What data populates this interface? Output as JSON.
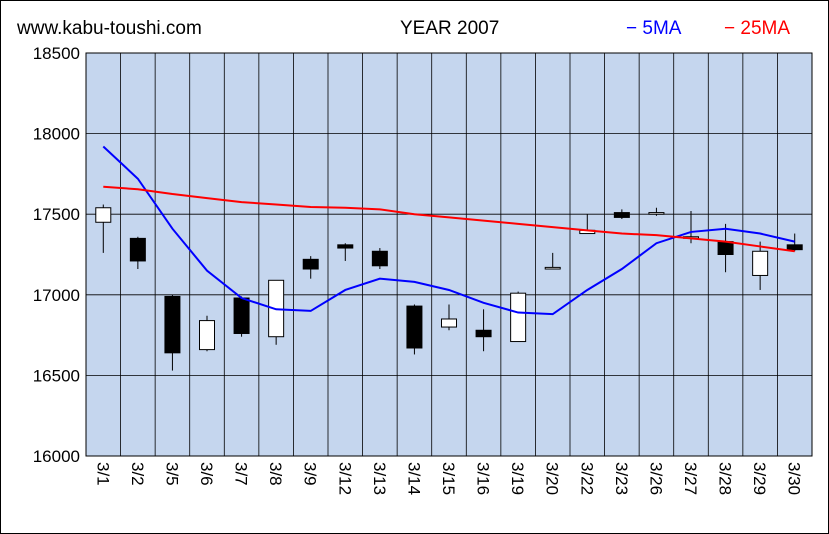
{
  "header": {
    "site": "www.kabu-toushi.com",
    "title": "YEAR 2007",
    "legend_ma5": "− 5MA",
    "legend_ma25": "− 25MA"
  },
  "colors": {
    "plot_background": "#c5d6ee",
    "grid": "#000000",
    "ma5": "#0000ff",
    "ma25": "#ff0000",
    "bull_body": "#ffffff",
    "bear_body": "#000000"
  },
  "chart_data": {
    "type": "candlestick",
    "title": "YEAR 2007",
    "xlabel": "",
    "ylabel": "",
    "ylim": [
      16000,
      18500
    ],
    "yticks": [
      16000,
      16500,
      17000,
      17500,
      18000,
      18500
    ],
    "grid": true,
    "legend_placement": "top-right",
    "categories": [
      "3/1",
      "3/2",
      "3/5",
      "3/6",
      "3/7",
      "3/8",
      "3/9",
      "3/12",
      "3/13",
      "3/14",
      "3/15",
      "3/16",
      "3/19",
      "3/20",
      "3/22",
      "3/23",
      "3/26",
      "3/27",
      "3/28",
      "3/29",
      "3/30"
    ],
    "candles": [
      {
        "open": 17450,
        "high": 17560,
        "low": 17260,
        "close": 17540
      },
      {
        "open": 17350,
        "high": 17360,
        "low": 17160,
        "close": 17210
      },
      {
        "open": 16990,
        "high": 17000,
        "low": 16530,
        "close": 16640
      },
      {
        "open": 16660,
        "high": 16870,
        "low": 16650,
        "close": 16840
      },
      {
        "open": 16980,
        "high": 16990,
        "low": 16740,
        "close": 16760
      },
      {
        "open": 16740,
        "high": 17090,
        "low": 16690,
        "close": 17090
      },
      {
        "open": 17220,
        "high": 17240,
        "low": 17100,
        "close": 17160
      },
      {
        "open": 17310,
        "high": 17320,
        "low": 17210,
        "close": 17290
      },
      {
        "open": 17270,
        "high": 17290,
        "low": 17160,
        "close": 17180
      },
      {
        "open": 16930,
        "high": 16940,
        "low": 16630,
        "close": 16670
      },
      {
        "open": 16800,
        "high": 16940,
        "low": 16780,
        "close": 16850
      },
      {
        "open": 16780,
        "high": 16910,
        "low": 16650,
        "close": 16740
      },
      {
        "open": 16710,
        "high": 17020,
        "low": 16710,
        "close": 17010
      },
      {
        "open": 17160,
        "high": 17260,
        "low": 17160,
        "close": 17170
      },
      {
        "open": 17380,
        "high": 17500,
        "low": 17380,
        "close": 17400
      },
      {
        "open": 17510,
        "high": 17530,
        "low": 17470,
        "close": 17480
      },
      {
        "open": 17500,
        "high": 17540,
        "low": 17490,
        "close": 17510
      },
      {
        "open": 17360,
        "high": 17520,
        "low": 17320,
        "close": 17360
      },
      {
        "open": 17330,
        "high": 17440,
        "low": 17140,
        "close": 17250
      },
      {
        "open": 17120,
        "high": 17330,
        "low": 17030,
        "close": 17270
      },
      {
        "open": 17310,
        "high": 17380,
        "low": 17270,
        "close": 17280
      }
    ],
    "series": [
      {
        "name": "5MA",
        "values": [
          17920,
          17720,
          17410,
          17150,
          16980,
          16910,
          16900,
          17030,
          17100,
          17080,
          17030,
          16950,
          16890,
          16880,
          17030,
          17160,
          17320,
          17390,
          17410,
          17380,
          17330
        ]
      },
      {
        "name": "25MA",
        "values": [
          17670,
          17655,
          17625,
          17600,
          17575,
          17560,
          17545,
          17540,
          17530,
          17500,
          17480,
          17460,
          17440,
          17420,
          17400,
          17380,
          17370,
          17350,
          17330,
          17300,
          17270
        ]
      }
    ]
  }
}
